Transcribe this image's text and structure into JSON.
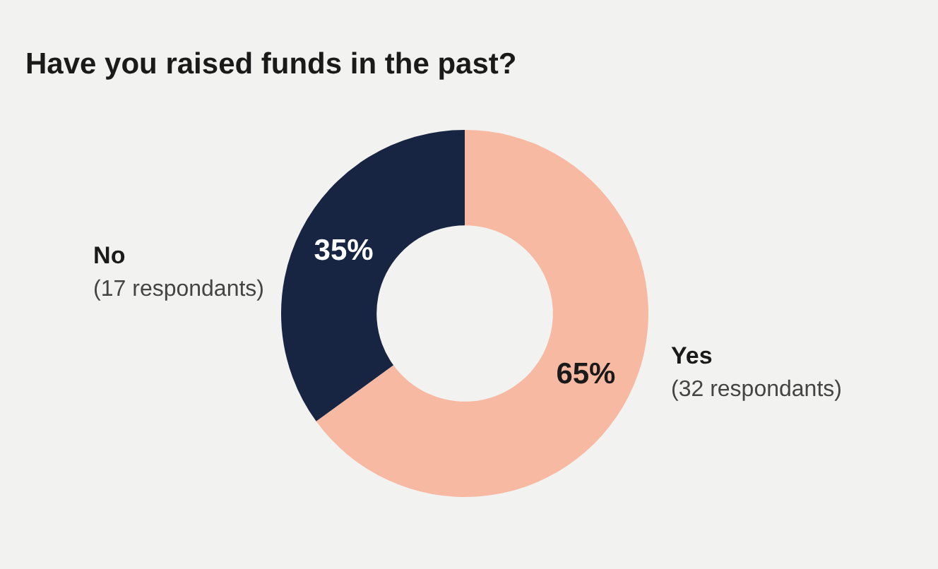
{
  "chart_data": {
    "type": "donut",
    "title": "Have you raised funds in the past?",
    "categories": [
      "Yes",
      "No"
    ],
    "values": [
      65,
      35
    ],
    "colors": [
      "#f8b9a3",
      "#172542"
    ],
    "value_labels": [
      "65%",
      "35%"
    ],
    "annotations": [
      "(32 respondants)",
      "(17 respondants)"
    ],
    "legend": false
  }
}
